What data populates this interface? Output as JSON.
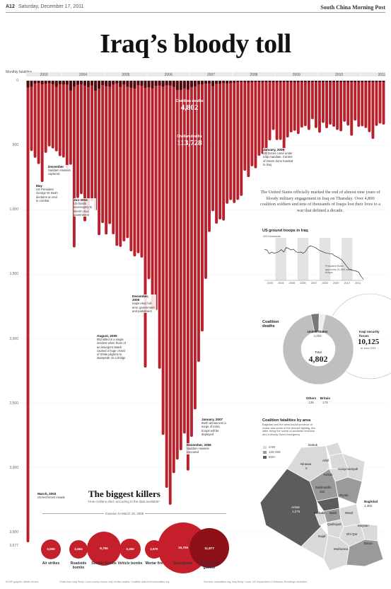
{
  "masthead": {
    "page": "A12",
    "date": "Saturday, December 17, 2011",
    "brand": "South China Morning Post"
  },
  "headline": "Iraq’s bloody toll",
  "chart_data": {
    "type": "bar",
    "y_axis_title": "Monthly fatalities",
    "y_ticks": [
      "0",
      "500",
      "1,000",
      "1,500",
      "2,000",
      "2,500",
      "3,000",
      "3,500"
    ],
    "ylim": [
      0,
      3577
    ],
    "y_bottom_label": "3,577",
    "year_labels": [
      "2003",
      "2004",
      "2005",
      "2006",
      "2007",
      "2008",
      "2009",
      "2010",
      "2011"
    ],
    "start": "2003-03",
    "civilian_monthly": [
      3577,
      545,
      597,
      646,
      785,
      559,
      509,
      525,
      548,
      585,
      596,
      681,
      651,
      1292,
      909,
      879,
      1090,
      1004,
      934,
      1006,
      1197,
      1103,
      1192,
      1111,
      1190,
      1280,
      1288,
      1245,
      1220,
      1322,
      1362,
      1337,
      1371,
      2223,
      1539,
      1775,
      1778,
      2232,
      2745,
      3155,
      3286,
      3041,
      2936,
      2864,
      2735,
      3021,
      2760,
      2547,
      2179,
      1943,
      1536,
      1172,
      1011,
      1108,
      1075,
      1084,
      953,
      925,
      948,
      924,
      893,
      698,
      747,
      663,
      679,
      582,
      568,
      586,
      463,
      382,
      460,
      459,
      553,
      440,
      400,
      388,
      413,
      363,
      352,
      382,
      299,
      367,
      403,
      327,
      368,
      340,
      357,
      382,
      392,
      318,
      348,
      426,
      309,
      358,
      353,
      367,
      399,
      451,
      350,
      332,
      340
    ],
    "coalition_monthly": [
      92,
      82,
      37,
      31,
      48,
      43,
      33,
      47,
      82,
      48,
      51,
      52,
      135,
      80,
      54,
      49,
      66,
      87,
      64,
      137,
      107,
      58,
      74,
      80,
      52,
      35,
      84,
      51,
      82,
      96,
      107,
      60,
      70,
      98,
      88,
      103,
      70,
      66,
      81,
      63,
      65,
      83,
      126,
      127,
      104,
      121,
      87,
      76,
      49,
      49,
      39,
      37,
      73,
      42,
      41,
      31,
      36,
      32,
      25,
      18,
      13,
      19,
      25,
      18,
      15,
      7,
      16,
      14,
      4,
      10,
      10,
      10,
      8,
      7,
      6,
      7,
      10,
      4,
      7,
      14,
      6,
      9,
      3,
      3,
      9,
      3,
      5,
      3,
      8,
      11,
      14,
      2,
      5,
      3,
      6,
      3,
      5,
      2,
      4,
      5,
      3
    ],
    "totals": {
      "coalition_label": "Coalition deaths",
      "coalition_value": "4,802",
      "civilian_label": "Civilian deaths",
      "civilian_value": "113,728"
    }
  },
  "annotations": [
    {
      "title": "March, 2003",
      "text": "US-led forces invade"
    },
    {
      "title": "May",
      "text": "US President George W. Bush declares an end to combat"
    },
    {
      "title": "December",
      "text": "Saddam Hussein captured"
    },
    {
      "title": "Jun 2004",
      "text": "US hands sovereignty to interim Iraqi government"
    },
    {
      "title": "August, 2005",
      "text": "953 killed in a single incident when fears of an insurgent attack caused a huge crowd of Shiite pilgrims to stampede on a bridge"
    },
    {
      "title": "December, 2005",
      "text": "Iraqis elect full-term government and parliament"
    },
    {
      "title": "January, 2007",
      "text": "Bush announces a surge of extra troops will be deployed"
    },
    {
      "title": "December, 2006",
      "text": "Saddam Hussein executed"
    },
    {
      "title": "January, 2009",
      "text": "US forces come under Iraqi mandate. Control of Green Zone handed to Iraq"
    }
  ],
  "lede": "The United States officially marked the end of almost nine years of bloody military engagement in Iraq on Thursday. Over 4,800 coalition soldiers and tens of thousands of Iraqis lost their lives to a war that defined a decade.",
  "troops": {
    "title": "US ground troops in Iraq",
    "unit": "200 thousands",
    "note": "President Bush approves 21,500 extra troops",
    "years": [
      "2003",
      "2004",
      "2005",
      "2006",
      "2007",
      "2008",
      "2009",
      "2010",
      "2011"
    ],
    "values": [
      150,
      148,
      130,
      138,
      132,
      135,
      140,
      150,
      138,
      160,
      155,
      148,
      152,
      140,
      135,
      138,
      132,
      140,
      160,
      168,
      165,
      160,
      152,
      145,
      140,
      135,
      132,
      130,
      130,
      120,
      115,
      108,
      100,
      85,
      70,
      55,
      50,
      48,
      45,
      40,
      20,
      5
    ]
  },
  "coalition_deaths": {
    "title": "Coalition deaths",
    "total_label": "Total",
    "total_value": "4,802",
    "segments": [
      {
        "name": "United States",
        "value": 4484,
        "value_label": "4,484",
        "color": "#bfbfbf"
      },
      {
        "name": "Britain",
        "value": 179,
        "value_label": "179",
        "color": "#777777"
      },
      {
        "name": "Others",
        "value": 139,
        "value_label": "139",
        "color": "#eeeeee"
      }
    ]
  },
  "iraqi_forces": {
    "title": "Iraqi security forces",
    "value": "10,125",
    "note": "to June 2011"
  },
  "map": {
    "title": "Coalition fatalities by area",
    "subtitle": "Baghdad and the west-bound province of Anbar saw some of the fiercest fighting, the latter being the scene of sectarian tensions and a bloody Sunni insurgency",
    "legend": [
      {
        "label": "0-99",
        "color": "#d9d9d9"
      },
      {
        "label": "100-499",
        "color": "#9a9a9a"
      },
      {
        "label": "500+",
        "color": "#5c5c5c"
      }
    ],
    "regions": [
      {
        "name": "Dahuk",
        "value": ""
      },
      {
        "name": "Ninawa",
        "value": "0"
      },
      {
        "name": "Arbil",
        "value": ""
      },
      {
        "name": "Kirkuk",
        "value": ""
      },
      {
        "name": "Sulaymaniyah",
        "value": ""
      },
      {
        "name": "Salahaddin",
        "value": "432"
      },
      {
        "name": "Diyala",
        "value": ""
      },
      {
        "name": "Anbar",
        "value": "1,275"
      },
      {
        "name": "Baghdad",
        "value": "1,401"
      },
      {
        "name": "Karbala",
        "value": ""
      },
      {
        "name": "Babil",
        "value": ""
      },
      {
        "name": "Wasit",
        "value": ""
      },
      {
        "name": "Qadisiyah",
        "value": ""
      },
      {
        "name": "Dhi Qar",
        "value": ""
      },
      {
        "name": "Maysan",
        "value": ""
      },
      {
        "name": "Najaf",
        "value": ""
      },
      {
        "name": "Muthanna",
        "value": ""
      },
      {
        "name": "Basra",
        "value": ""
      }
    ]
  },
  "killers": {
    "title": "The biggest killers",
    "subtitle": "How civilians died, according to the data available*",
    "range": "Invasion to March 19, 2008",
    "items": [
      {
        "label": "Air strikes",
        "value": "3,000",
        "size": 3000
      },
      {
        "label": "Roadside bombs",
        "value": "2,554",
        "size": 2554
      },
      {
        "label": "Suicide bombs",
        "value": "8,766",
        "size": 8766
      },
      {
        "label": "Vehicle bombs",
        "value": "3,350",
        "size": 3350
      },
      {
        "label": "Mortar fire",
        "value": "2,676",
        "size": 2676
      },
      {
        "label": "Executions",
        "value": "19,706",
        "size": 19706
      },
      {
        "label": "Small arms gunfire",
        "value": "11,877",
        "size": 11877
      }
    ]
  },
  "footer": {
    "left": "SCMP graphic: Adolfo Arranz",
    "mid": "*Data from Iraqi Body Count survey covers only civilian deaths. Coalition data from icasualties.org",
    "right": "Sources: icasualties.org, Iraqi Body Count, US Department of Defense, Brookings Institution"
  }
}
